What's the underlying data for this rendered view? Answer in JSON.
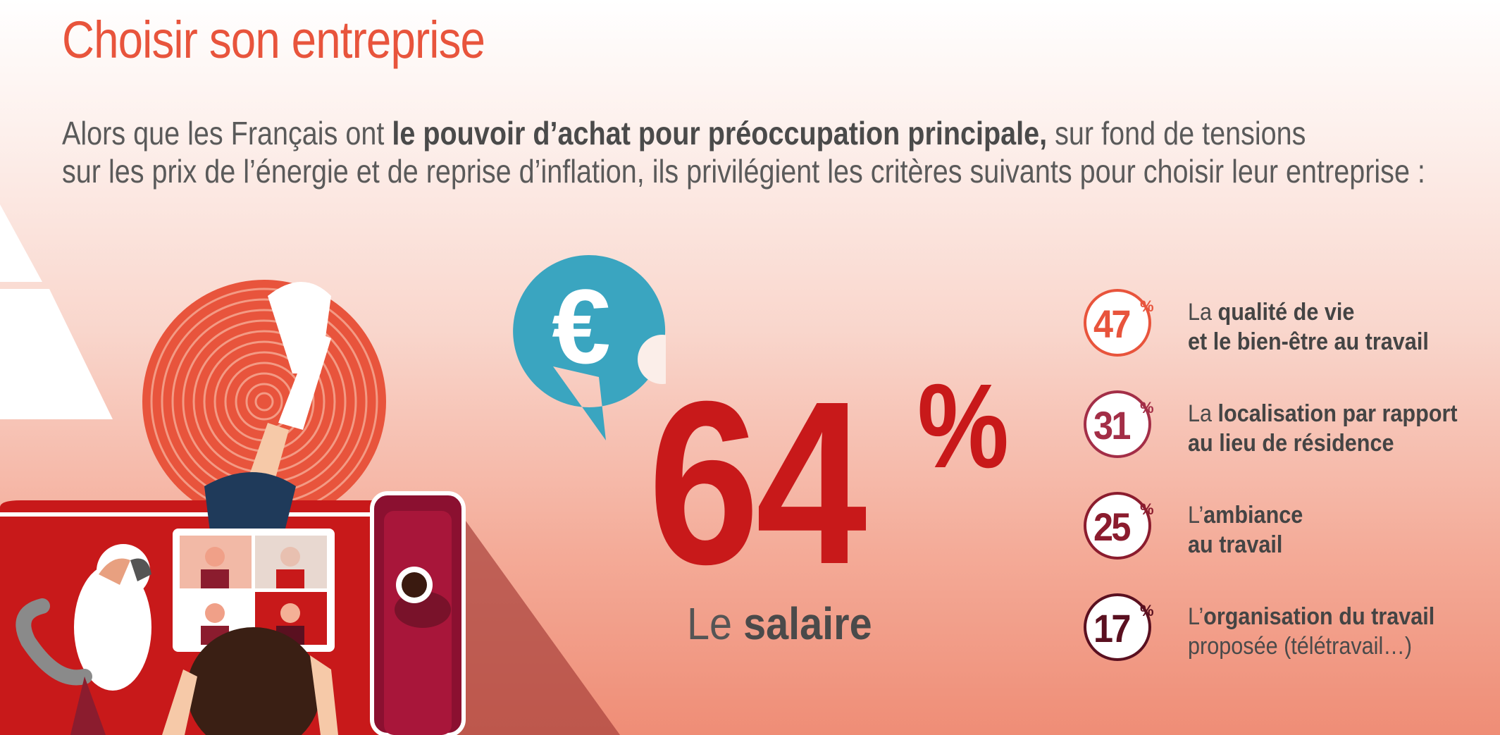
{
  "title": "Choisir son entreprise",
  "intro": {
    "line1_a": "Alors que les Français ont ",
    "line1_b": "le pouvoir d’achat pour préoccupation principale,",
    "line1_c": " sur fond de tensions",
    "line2": "sur les prix de l’énergie et de reprise d’inflation, ils privilégient les critères suivants pour choisir leur entreprise :"
  },
  "main_stat": {
    "value": "64",
    "unit": "%",
    "label_a": "Le ",
    "label_b": "salaire"
  },
  "criteria": [
    {
      "value": "47",
      "unit": "%",
      "color": "#e8543c",
      "l1a": "La ",
      "l1b": "qualité de vie",
      "l2a": "",
      "l2b": "et le bien-être au travail"
    },
    {
      "value": "31",
      "unit": "%",
      "color": "#a32e47",
      "l1a": "La ",
      "l1b": "localisation par rapport",
      "l2a": "",
      "l2b": "au lieu de résidence"
    },
    {
      "value": "25",
      "unit": "%",
      "color": "#8b1c2e",
      "l1a": "L’",
      "l1b": "ambiance",
      "l2a": "",
      "l2b": "au travail"
    },
    {
      "value": "17",
      "unit": "%",
      "color": "#5a1020",
      "l1a": "L’",
      "l1b": "organisation du travail",
      "l2a": "proposée (télétravail…)",
      "l2b": ""
    }
  ],
  "colors": {
    "accent": "#e8543c",
    "stat": "#c8191a",
    "euro_bubble": "#3aa5c0"
  },
  "icons": [
    "euro-icon",
    "illustration-woman-teleworking"
  ]
}
